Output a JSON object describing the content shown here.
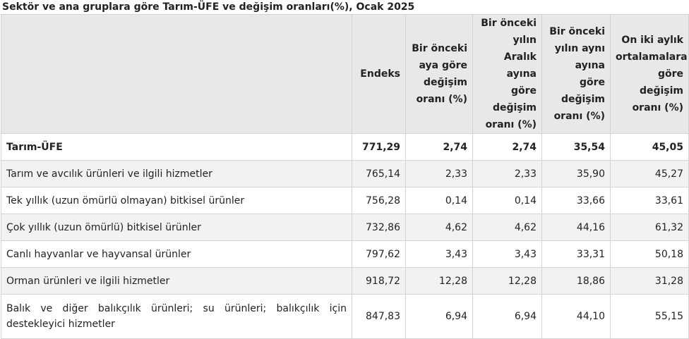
{
  "caption": "Sektör ve ana gruplara göre Tarım-ÜFE ve değişim oranları(%), Ocak 2025",
  "columns": [
    "",
    "Endeks",
    "Bir önceki aya göre değişim oranı (%)",
    "Bir önceki yılın Aralık ayına göre değişim oranı (%)",
    "Bir önceki yılın aynı ayına göre değişim oranı (%)",
    "On iki aylık ortalamalara göre değişim oranı (%)"
  ],
  "rows": [
    {
      "label": "Tarım-ÜFE",
      "values": [
        "771,29",
        "2,74",
        "2,74",
        "35,54",
        "45,05"
      ]
    },
    {
      "label": "Tarım ve avcılık ürünleri ve ilgili hizmetler",
      "values": [
        "765,14",
        "2,33",
        "2,33",
        "35,90",
        "45,27"
      ]
    },
    {
      "label": "Tek yıllık (uzun ömürlü olmayan) bitkisel ürünler",
      "values": [
        "756,28",
        "0,14",
        "0,14",
        "33,66",
        "33,61"
      ]
    },
    {
      "label": "Çok yıllık (uzun ömürlü) bitkisel ürünler",
      "values": [
        "732,86",
        "4,62",
        "4,62",
        "44,16",
        "61,32"
      ]
    },
    {
      "label": "Canlı hayvanlar ve hayvansal ürünler",
      "values": [
        "797,62",
        "3,43",
        "3,43",
        "33,31",
        "50,18"
      ]
    },
    {
      "label": "Orman ürünleri ve ilgili hizmetler",
      "values": [
        "918,72",
        "12,28",
        "12,28",
        "18,86",
        "31,28"
      ]
    },
    {
      "label": "Balık ve diğer balıkçılık ürünleri; su ürünleri; balıkçılık için destekleyici hizmetler",
      "values": [
        "847,83",
        "6,94",
        "6,94",
        "44,10",
        "55,15"
      ]
    }
  ]
}
